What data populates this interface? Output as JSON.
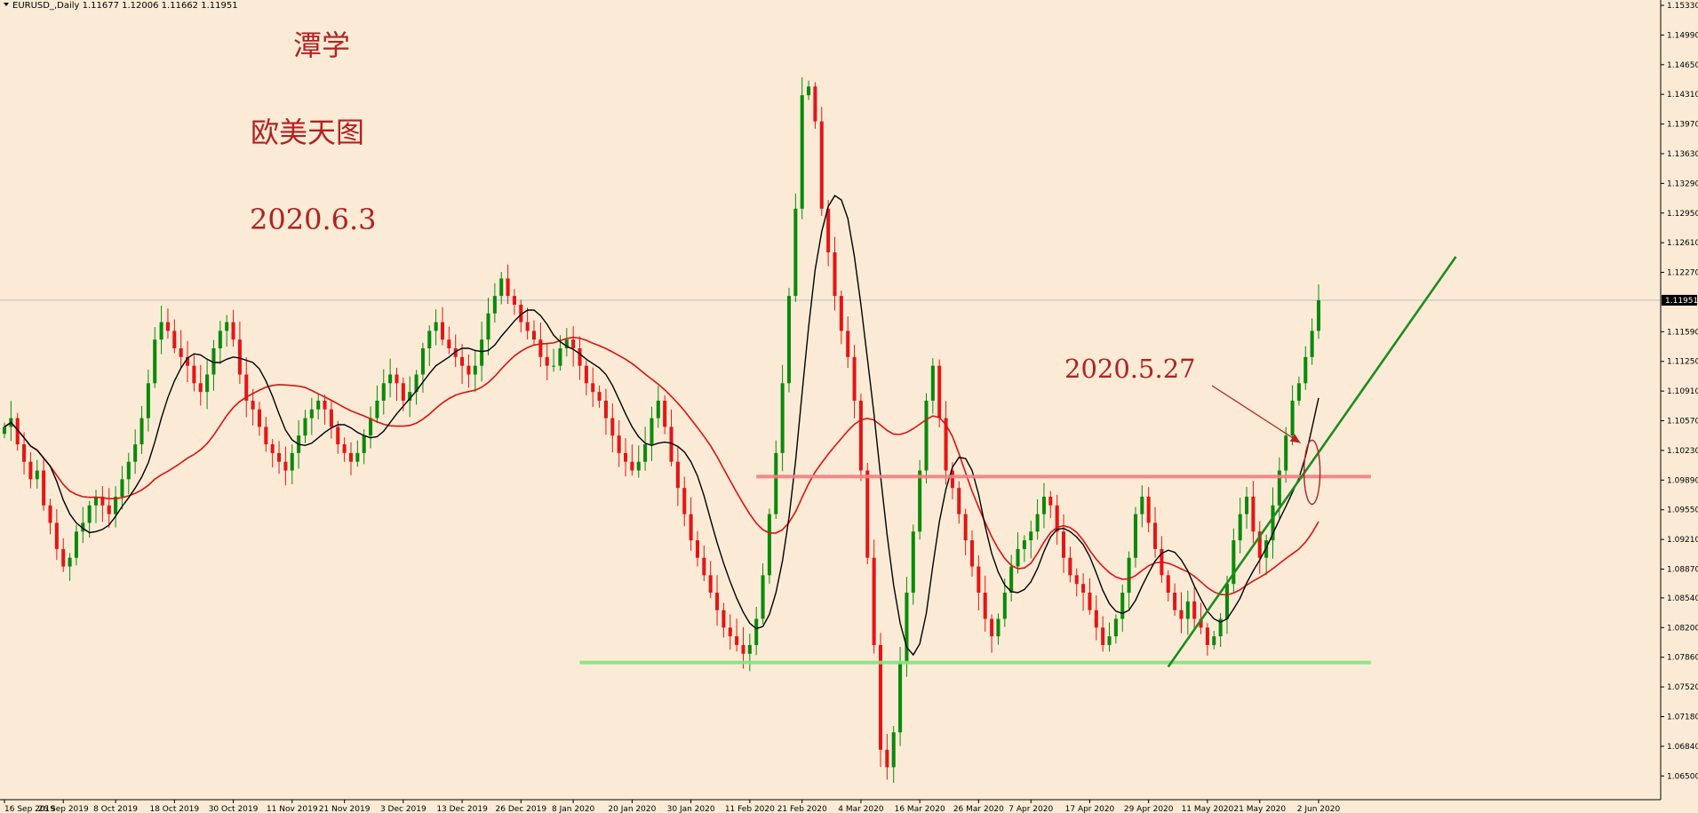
{
  "window": {
    "title": "EURUSD_,Daily  1.11677 1.12006 1.11662 1.11951"
  },
  "annotations": {
    "title": "潭学",
    "subtitle": "欧美天图",
    "date": "2020.6.3",
    "marker": "2020.5.27"
  },
  "chart_data": {
    "type": "candlestick",
    "symbol": "EURUSD_",
    "timeframe": "Daily",
    "ohlc_header": {
      "open": 1.11677,
      "high": 1.12006,
      "low": 1.11662,
      "close": 1.11951
    },
    "current_price": "1.11951",
    "ylim": [
      1.0633,
      1.1533
    ],
    "y_ticks": [
      "1.15330",
      "1.14990",
      "1.14650",
      "1.14310",
      "1.13970",
      "1.13630",
      "1.13290",
      "1.12950",
      "1.12610",
      "1.12270",
      "1.11590",
      "1.11250",
      "1.10910",
      "1.10570",
      "1.10230",
      "1.09890",
      "1.09550",
      "1.09210",
      "1.08870",
      "1.08540",
      "1.08200",
      "1.07860",
      "1.07520",
      "1.07180",
      "1.06840",
      "1.06500"
    ],
    "x_ticks": [
      "16 Sep 2019",
      "26 Sep 2019",
      "8 Oct 2019",
      "18 Oct 2019",
      "30 Oct 2019",
      "11 Nov 2019",
      "21 Nov 2019",
      "3 Dec 2019",
      "13 Dec 2019",
      "26 Dec 2019",
      "8 Jan 2020",
      "20 Jan 2020",
      "30 Jan 2020",
      "11 Feb 2020",
      "21 Feb 2020",
      "4 Mar 2020",
      "16 Mar 2020",
      "26 Mar 2020",
      "7 Apr 2020",
      "17 Apr 2020",
      "29 Apr 2020",
      "11 May 2020",
      "21 May 2020",
      "2 Jun 2020"
    ],
    "close_series": [
      1.105,
      1.106,
      1.103,
      1.101,
      1.099,
      1.1,
      1.096,
      1.094,
      1.091,
      1.089,
      1.09,
      1.093,
      1.094,
      1.096,
      1.097,
      1.096,
      1.095,
      1.097,
      1.099,
      1.101,
      1.103,
      1.106,
      1.11,
      1.115,
      1.117,
      1.116,
      1.114,
      1.113,
      1.112,
      1.11,
      1.109,
      1.111,
      1.114,
      1.116,
      1.117,
      1.115,
      1.111,
      1.108,
      1.107,
      1.105,
      1.103,
      1.102,
      1.101,
      1.1,
      1.102,
      1.104,
      1.106,
      1.107,
      1.108,
      1.107,
      1.105,
      1.103,
      1.102,
      1.101,
      1.102,
      1.104,
      1.106,
      1.108,
      1.11,
      1.111,
      1.11,
      1.108,
      1.109,
      1.111,
      1.114,
      1.116,
      1.117,
      1.115,
      1.114,
      1.113,
      1.112,
      1.111,
      1.112,
      1.115,
      1.118,
      1.12,
      1.122,
      1.12,
      1.119,
      1.117,
      1.116,
      1.115,
      1.113,
      1.112,
      1.112,
      1.114,
      1.115,
      1.114,
      1.112,
      1.11,
      1.109,
      1.108,
      1.106,
      1.104,
      1.102,
      1.101,
      1.1,
      1.101,
      1.103,
      1.106,
      1.108,
      1.105,
      1.101,
      1.098,
      1.095,
      1.092,
      1.09,
      1.088,
      1.086,
      1.084,
      1.082,
      1.081,
      1.08,
      1.079,
      1.08,
      1.083,
      1.088,
      1.095,
      1.102,
      1.11,
      1.12,
      1.13,
      1.143,
      1.144,
      1.14,
      1.13,
      1.125,
      1.12,
      1.116,
      1.113,
      1.108,
      1.1,
      1.09,
      1.08,
      1.068,
      1.066,
      1.07,
      1.078,
      1.086,
      1.093,
      1.1,
      1.108,
      1.112,
      1.106,
      1.1,
      1.098,
      1.095,
      1.092,
      1.089,
      1.086,
      1.083,
      1.081,
      1.083,
      1.086,
      1.089,
      1.091,
      1.092,
      1.093,
      1.095,
      1.097,
      1.096,
      1.093,
      1.09,
      1.088,
      1.087,
      1.086,
      1.084,
      1.082,
      1.08,
      1.081,
      1.083,
      1.086,
      1.09,
      1.095,
      1.097,
      1.094,
      1.091,
      1.088,
      1.086,
      1.084,
      1.083,
      1.085,
      1.083,
      1.082,
      1.08,
      1.081,
      1.083,
      1.087,
      1.092,
      1.095,
      1.097,
      1.093,
      1.09,
      1.092,
      1.096,
      1.1,
      1.104,
      1.108,
      1.11,
      1.113,
      1.116,
      1.1195
    ],
    "moving_averages": [
      {
        "color": "#000000"
      },
      {
        "color": "#DD1111"
      }
    ],
    "levels": [
      {
        "price": 1.0993,
        "from_index": 115,
        "to_index": 209,
        "color": "#F08080"
      },
      {
        "price": 1.078,
        "from_index": 88,
        "to_index": 209,
        "color": "#7FE67F"
      }
    ],
    "trendline": {
      "from_index": 178,
      "from_price": 1.0775,
      "to_index": 222,
      "to_price": 1.1245,
      "color": "#1E8C1E"
    },
    "colors": {
      "up": "#0A8A0A",
      "down": "#E51515",
      "background": "#FBEBD6"
    }
  }
}
